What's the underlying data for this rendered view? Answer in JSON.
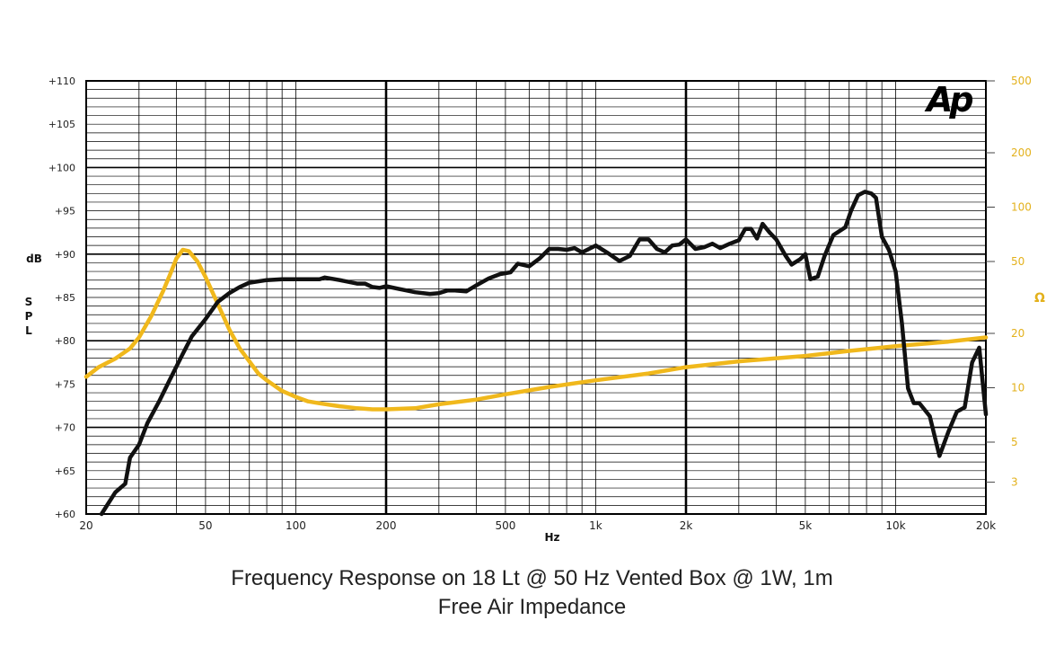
{
  "chart_data": {
    "type": "line",
    "logo": "Ap",
    "x_scale": "log",
    "xlim": [
      20,
      20000
    ],
    "x_ticks": [
      {
        "value": 20,
        "label": "20"
      },
      {
        "value": 50,
        "label": "50"
      },
      {
        "value": 100,
        "label": "100"
      },
      {
        "value": 200,
        "label": "200"
      },
      {
        "value": 500,
        "label": "500"
      },
      {
        "value": 1000,
        "label": "1k"
      },
      {
        "value": 2000,
        "label": "2k"
      },
      {
        "value": 5000,
        "label": "5k"
      },
      {
        "value": 10000,
        "label": "10k"
      },
      {
        "value": 20000,
        "label": "20k"
      }
    ],
    "xlabel": "Hz",
    "ylabel_left": "dB SPL",
    "ylim_left": [
      60,
      110
    ],
    "y_ticks_left": [
      "+60",
      "+65",
      "+70",
      "+75",
      "+80",
      "+85",
      "+90",
      "+95",
      "+100",
      "+105",
      "+110"
    ],
    "ylabel_right": "Ω",
    "right_scale": "log",
    "ylim_right": [
      2,
      500
    ],
    "y_ticks_right": [
      {
        "value": 3,
        "label": "3"
      },
      {
        "value": 5,
        "label": "5"
      },
      {
        "value": 10,
        "label": "10"
      },
      {
        "value": 20,
        "label": "20"
      },
      {
        "value": 50,
        "label": "50"
      },
      {
        "value": 100,
        "label": "100"
      },
      {
        "value": 200,
        "label": "200"
      },
      {
        "value": 500,
        "label": "500"
      }
    ],
    "grid": true,
    "colors": {
      "spl": "#111111",
      "impedance": "#f0b81c",
      "right_axis": "#e3b11c"
    },
    "series": [
      {
        "axis": "left",
        "x": [
          22.5,
          25,
          27,
          28,
          30,
          32,
          35,
          38,
          42,
          45,
          50,
          55,
          60,
          65,
          70,
          80,
          90,
          100,
          110,
          120,
          125,
          140,
          160,
          170,
          180,
          190,
          200,
          220,
          250,
          280,
          300,
          320,
          340,
          370,
          400,
          440,
          480,
          500,
          520,
          550,
          600,
          650,
          700,
          750,
          800,
          850,
          900,
          1000,
          1100,
          1200,
          1300,
          1400,
          1500,
          1600,
          1700,
          1800,
          1900,
          2000,
          2150,
          2300,
          2450,
          2600,
          2800,
          3000,
          3150,
          3300,
          3450,
          3600,
          3800,
          4000,
          4300,
          4500,
          4800,
          5000,
          5200,
          5500,
          5800,
          6200,
          6800,
          7100,
          7500,
          7900,
          8300,
          8600,
          9000,
          9500,
          10000,
          10500,
          11000,
          11500,
          12000,
          13000,
          14000,
          15000,
          16000,
          17000,
          18000,
          19000,
          20000
        ],
        "values": [
          60,
          62.5,
          63.5,
          66.5,
          68,
          70.5,
          73,
          75.5,
          78.5,
          80.5,
          82.5,
          84.5,
          85.5,
          86.2,
          86.7,
          87,
          87.1,
          87.1,
          87.1,
          87.1,
          87.3,
          87,
          86.6,
          86.6,
          86.2,
          86.1,
          86.3,
          86,
          85.6,
          85.4,
          85.5,
          85.8,
          85.8,
          85.7,
          86.4,
          87.2,
          87.7,
          87.8,
          87.9,
          88.9,
          88.6,
          89.5,
          90.6,
          90.6,
          90.5,
          90.7,
          90.2,
          91,
          90.1,
          89.2,
          89.8,
          91.7,
          91.7,
          90.6,
          90.2,
          91,
          91.1,
          91.7,
          90.6,
          90.8,
          91.2,
          90.7,
          91.2,
          91.6,
          92.9,
          92.9,
          91.8,
          93.5,
          92.5,
          91.7,
          89.8,
          88.8,
          89.4,
          90,
          87.1,
          87.4,
          89.8,
          92.2,
          93.1,
          95,
          96.8,
          97.2,
          97,
          96.5,
          92,
          90.5,
          88,
          82,
          74.5,
          72.8,
          72.8,
          71.3,
          66.7,
          69.5,
          71.8,
          72.3,
          77.5,
          79.2,
          71.5
        ]
      },
      {
        "axis": "right",
        "x": [
          20,
          22,
          25,
          28,
          30,
          33,
          36,
          38,
          40,
          42,
          44,
          47,
          50,
          55,
          60,
          65,
          70,
          75,
          80,
          90,
          100,
          110,
          120,
          140,
          160,
          180,
          200,
          250,
          300,
          400,
          500,
          700,
          1000,
          1500,
          2000,
          3000,
          5000,
          7000,
          10000,
          15000,
          20000
        ],
        "values": [
          11.5,
          13,
          14.5,
          16.5,
          19,
          25,
          34,
          42,
          52,
          58,
          57,
          50,
          41,
          29,
          21,
          16.5,
          14,
          12,
          11,
          9.6,
          8.9,
          8.4,
          8.2,
          7.9,
          7.7,
          7.6,
          7.6,
          7.7,
          8.1,
          8.6,
          9.2,
          10.1,
          11,
          12,
          13,
          14,
          15,
          16,
          17,
          18,
          19
        ]
      }
    ],
    "title": "Frequency Response on 18 Lt @ 50 Hz Vented Box @ 1W, 1m",
    "subtitle": "Free Air Impedance"
  }
}
